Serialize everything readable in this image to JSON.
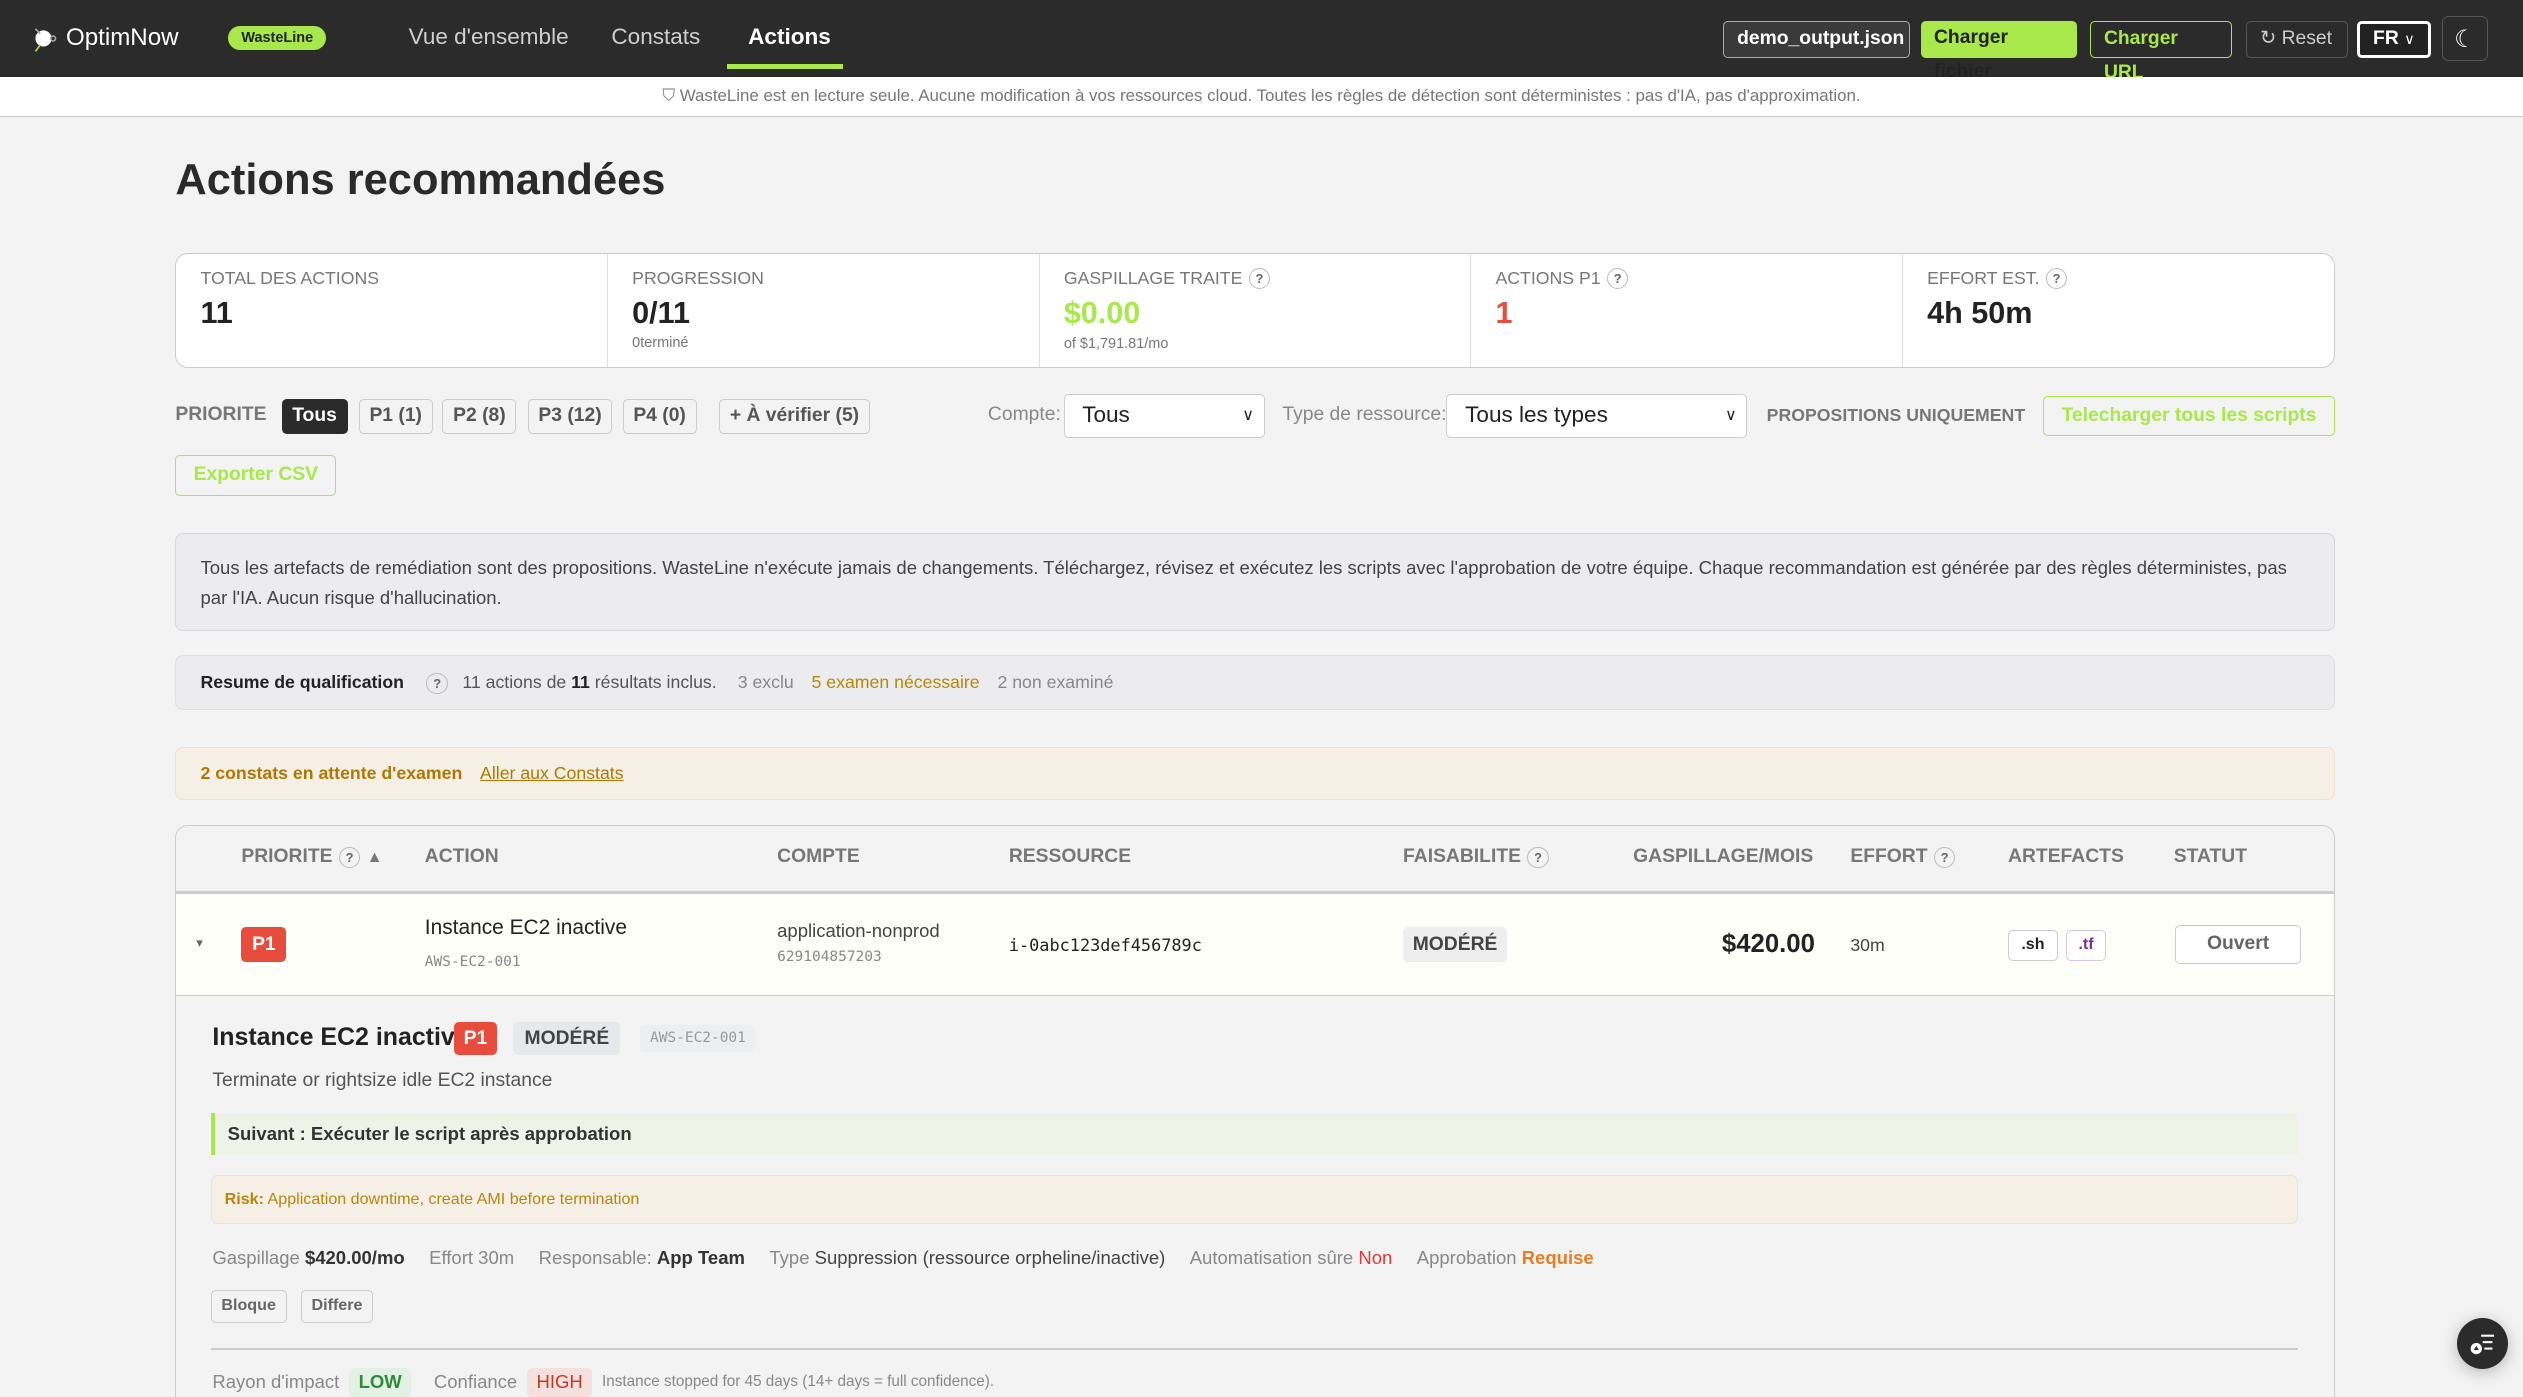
{
  "header": {
    "brand": "OptimNow",
    "product_badge": "WasteLine",
    "nav": [
      "Vue d'ensemble",
      "Constats",
      "Actions"
    ],
    "active_nav": "Actions",
    "file_button": "demo_output.json",
    "load_file": "Charger fichier",
    "load_url": "Charger URL",
    "reset": "Reset",
    "language": "FR",
    "accent": "#a8e84a"
  },
  "banner": "WasteLine est en lecture seule. Aucune modification à vos ressources cloud. Toutes les règles de détection sont déterministes : pas d'IA, pas d'approximation.",
  "page_title": "Actions recommandées",
  "stats": [
    {
      "label": "TOTAL DES ACTIONS",
      "value": "11"
    },
    {
      "label": "PROGRESSION",
      "value": "0/11",
      "sub": "0terminé"
    },
    {
      "label": "GASPILLAGE TRAITE",
      "value": "$0.00",
      "sub": "of $1,791.81/mo"
    },
    {
      "label": "ACTIONS P1",
      "value": "1"
    },
    {
      "label": "EFFORT EST.",
      "value": "4h 50m"
    }
  ],
  "filters": {
    "priority_label": "PRIORITE",
    "priority_options": [
      "Tous",
      "P1 (1)",
      "P2 (8)",
      "P3 (12)",
      "P4 (0)"
    ],
    "selected": "Tous",
    "review": "+ À vérifier (5)",
    "account_label": "Compte:",
    "account_value": "Tous",
    "type_label": "Type de ressource:",
    "type_value": "Tous les types",
    "proposals_only": "PROPOSITIONS UNIQUEMENT",
    "download_all": "Telecharger tous les scripts",
    "export_csv": "Exporter CSV"
  },
  "info": "Tous les artefacts de remédiation sont des propositions. WasteLine n'exécute jamais de changements. Téléchargez, révisez et exécutez les scripts avec l'approbation de votre équipe. Chaque recommandation est générée par des règles déterministes, pas par l'IA. Aucun risque d'hallucination.",
  "qualification": {
    "title": "Resume de qualification",
    "p1": "11",
    "p2": " actions de ",
    "p3": "11",
    "p4": " résultats inclus.",
    "excluded": "3 exclu",
    "review": "5 examen nécessaire",
    "not_reviewed": "2 non examiné"
  },
  "pending": {
    "text": "2 constats en attente d'examen",
    "link": "Aller aux Constats"
  },
  "table": {
    "headers": [
      "PRIORITE",
      "ACTION",
      "COMPTE",
      "RESSOURCE",
      "FAISABILITE",
      "GASPILLAGE/MOIS",
      "EFFORT",
      "ARTEFACTS",
      "STATUT"
    ],
    "rows": [
      {
        "priority": "P1",
        "action": "Instance EC2 inactive",
        "rule": "AWS-EC2-001",
        "account": "application-nonprod",
        "account_id": "629104857203",
        "resource": "i-0abc123def456789c",
        "feasibility": "MODÉRÉ",
        "waste": "$420.00",
        "effort": "30m",
        "artifacts": [
          ".sh",
          ".tf"
        ],
        "status": "Ouvert"
      }
    ]
  },
  "detail": {
    "title": "Instance EC2 inactive",
    "priority": "P1",
    "feasibility": "MODÉRÉ",
    "rule": "AWS-EC2-001",
    "description": "Terminate or rightsize idle EC2 instance",
    "next": "Suivant : Exécuter le script après approbation",
    "risk_label": "Risk:",
    "risk": "Application downtime, create AMI before termination",
    "meta": {
      "waste_label": "Gaspillage",
      "waste": "$420.00/mo",
      "effort": "Effort 30m",
      "owner_label": "Responsable:",
      "owner": "App Team",
      "type_label": "Type",
      "type": "Suppression (ressource orpheline/inactive)",
      "auto_label": "Automatisation sûre",
      "auto": "Non",
      "approval_label": "Approbation",
      "approval": "Requise"
    },
    "buttons": [
      "Bloque",
      "Differe"
    ],
    "impact_label": "Rayon d'impact",
    "impact": "LOW",
    "confidence_label": "Confiance",
    "confidence": "HIGH",
    "confidence_note": "Instance stopped for 45 days (14+ days = full confidence)."
  }
}
